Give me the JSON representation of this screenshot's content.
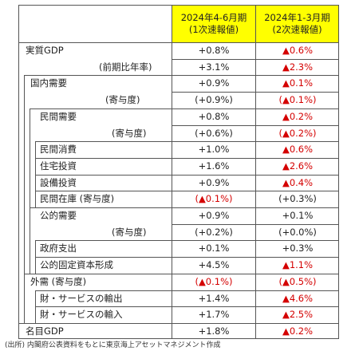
{
  "header": {
    "col1_line1": "2024年4-6月期",
    "col1_line2": "(1次速報値)",
    "col2_line1": "2024年1-3月期",
    "col2_line2": "(2次速報値)"
  },
  "rows": [
    {
      "label": "実質GDP",
      "v1": "+0.8%",
      "v2": "▲0.6%",
      "v1_neg": false,
      "v2_neg": true
    },
    {
      "label": "(前期比年率)",
      "v1": "+3.1%",
      "v2": "▲2.3%",
      "v1_neg": false,
      "v2_neg": true
    },
    {
      "label": "国内需要",
      "v1": "+0.9%",
      "v2": "▲0.1%",
      "v1_neg": false,
      "v2_neg": true
    },
    {
      "label": "(寄与度)",
      "v1": "(+0.9%)",
      "v2": "(▲0.1%)",
      "v1_neg": false,
      "v2_neg": true
    },
    {
      "label": "民間需要",
      "v1": "+0.8%",
      "v2": "▲0.2%",
      "v1_neg": false,
      "v2_neg": true
    },
    {
      "label": "(寄与度)",
      "v1": "(+0.6%)",
      "v2": "(▲0.2%)",
      "v1_neg": false,
      "v2_neg": true
    },
    {
      "label": "民間消費",
      "v1": "+1.0%",
      "v2": "▲0.6%",
      "v1_neg": false,
      "v2_neg": true
    },
    {
      "label": "住宅投資",
      "v1": "+1.6%",
      "v2": "▲2.6%",
      "v1_neg": false,
      "v2_neg": true
    },
    {
      "label": "設備投資",
      "v1": "+0.9%",
      "v2": "▲0.4%",
      "v1_neg": false,
      "v2_neg": true
    },
    {
      "label": "民間在庫 (寄与度)",
      "v1": "(▲0.1%)",
      "v2": "(+0.3%)",
      "v1_neg": true,
      "v2_neg": false
    },
    {
      "label": "公的需要",
      "v1": "+0.9%",
      "v2": "+0.1%",
      "v1_neg": false,
      "v2_neg": false
    },
    {
      "label": "(寄与度)",
      "v1": "(+0.2%)",
      "v2": "(+0.0%)",
      "v1_neg": false,
      "v2_neg": false
    },
    {
      "label": "政府支出",
      "v1": "+0.1%",
      "v2": "+0.3%",
      "v1_neg": false,
      "v2_neg": false
    },
    {
      "label": "公的固定資本形成",
      "v1": "+4.5%",
      "v2": "▲1.1%",
      "v1_neg": false,
      "v2_neg": true
    },
    {
      "label": "外需 (寄与度)",
      "v1": "(▲0.1%)",
      "v2": "(▲0.5%)",
      "v1_neg": true,
      "v2_neg": true
    },
    {
      "label": "財・サービスの輸出",
      "v1": "+1.4%",
      "v2": "▲4.6%",
      "v1_neg": false,
      "v2_neg": true
    },
    {
      "label": "財・サービスの輸入",
      "v1": "+1.7%",
      "v2": "▲2.5%",
      "v1_neg": false,
      "v2_neg": true
    },
    {
      "label": "名目GDP",
      "v1": "+1.8%",
      "v2": "▲0.2%",
      "v1_neg": false,
      "v2_neg": true
    }
  ],
  "source_note": "(出所) 内閣府公表資料をもとに東京海上アセットマネジメント作成"
}
